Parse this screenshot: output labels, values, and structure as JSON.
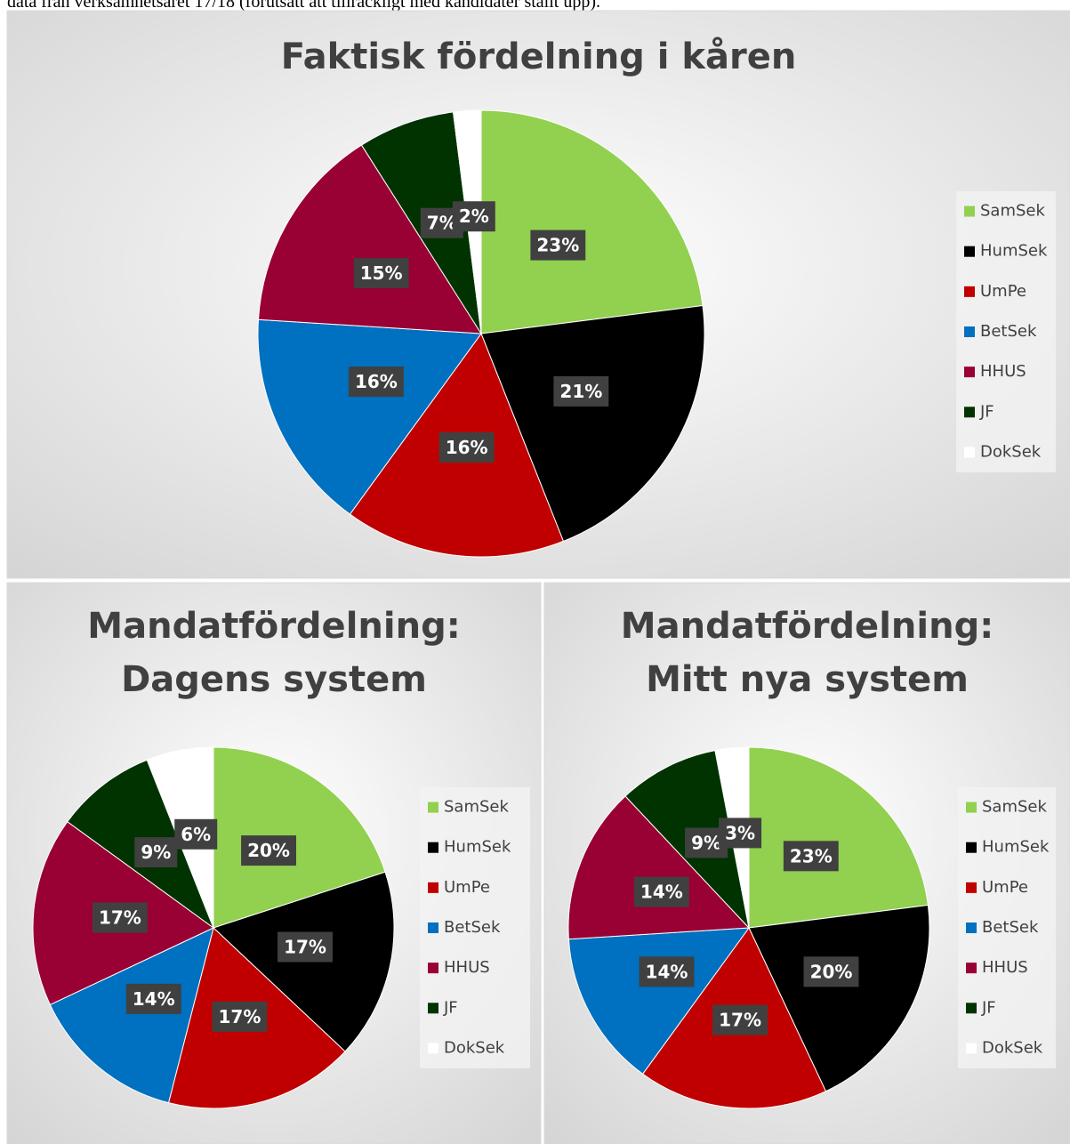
{
  "caption": "data från verksamhetsåret 17/18 (förutsatt att tillräckligt med kandidater ställt upp).",
  "chart_data": [
    {
      "type": "pie",
      "title_lines": [
        "Faktisk fördelning i kåren"
      ],
      "categories": [
        "SamSek",
        "HumSek",
        "UmPe",
        "BetSek",
        "HHUS",
        "JF",
        "DokSek"
      ],
      "values": [
        23,
        21,
        16,
        16,
        15,
        7,
        2
      ],
      "value_labels": [
        "23%",
        "21%",
        "16%",
        "16%",
        "15%",
        "7%",
        "2%"
      ],
      "colors": [
        "#92d050",
        "#000000",
        "#c00000",
        "#0070c0",
        "#990033",
        "#003300",
        "#ffffff"
      ]
    },
    {
      "type": "pie",
      "title_lines": [
        "Mandatfördelning:",
        "Dagens system"
      ],
      "categories": [
        "SamSek",
        "HumSek",
        "UmPe",
        "BetSek",
        "HHUS",
        "JF",
        "DokSek"
      ],
      "values": [
        20,
        17,
        17,
        14,
        17,
        9,
        6
      ],
      "value_labels": [
        "20%",
        "17%",
        "17%",
        "14%",
        "17%",
        "9%",
        "6%"
      ],
      "colors": [
        "#92d050",
        "#000000",
        "#c00000",
        "#0070c0",
        "#990033",
        "#003300",
        "#ffffff"
      ]
    },
    {
      "type": "pie",
      "title_lines": [
        "Mandatfördelning:",
        "Mitt nya system"
      ],
      "categories": [
        "SamSek",
        "HumSek",
        "UmPe",
        "BetSek",
        "HHUS",
        "JF",
        "DokSek"
      ],
      "values": [
        23,
        20,
        17,
        14,
        14,
        9,
        3
      ],
      "value_labels": [
        "23%",
        "20%",
        "17%",
        "14%",
        "14%",
        "9%",
        "3%"
      ],
      "colors": [
        "#92d050",
        "#000000",
        "#c00000",
        "#0070c0",
        "#990033",
        "#003300",
        "#ffffff"
      ]
    }
  ]
}
